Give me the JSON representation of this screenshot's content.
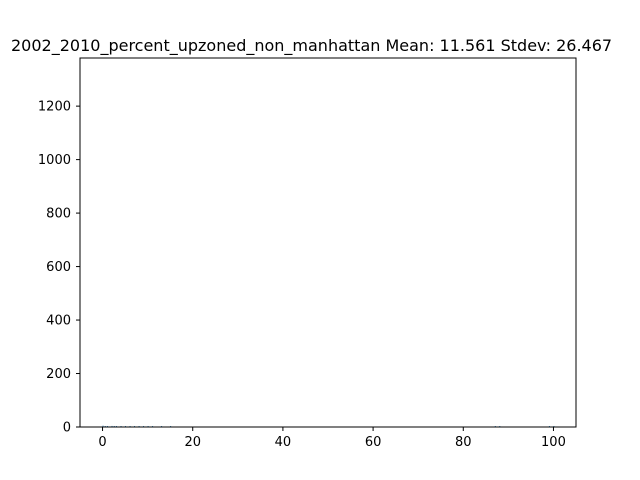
{
  "chart_data": {
    "type": "bar",
    "title": "2002_2010_percent_upzoned_non_manhattan  Mean: 11.561  Stdev: 26.467",
    "xlabel": "",
    "ylabel": "",
    "xlim": [
      -5,
      105
    ],
    "ylim": [
      0,
      1380
    ],
    "x_ticks": [
      0,
      20,
      40,
      60,
      80,
      100
    ],
    "y_ticks": [
      0,
      200,
      400,
      600,
      800,
      1000,
      1200
    ],
    "bar_color": "#1f77b4",
    "bins": [
      {
        "x": 0.0,
        "count": 5
      },
      {
        "x": 0.5,
        "count": 3
      },
      {
        "x": 1.0,
        "count": 2
      },
      {
        "x": 2.0,
        "count": 4
      },
      {
        "x": 2.5,
        "count": 2
      },
      {
        "x": 3.0,
        "count": 3
      },
      {
        "x": 4.0,
        "count": 2
      },
      {
        "x": 5.0,
        "count": 2
      },
      {
        "x": 6.0,
        "count": 2
      },
      {
        "x": 7.0,
        "count": 1
      },
      {
        "x": 8.0,
        "count": 2
      },
      {
        "x": 9.0,
        "count": 1
      },
      {
        "x": 10.0,
        "count": 2
      },
      {
        "x": 11.0,
        "count": 1
      },
      {
        "x": 13.0,
        "count": 1
      },
      {
        "x": 15.0,
        "count": 2
      },
      {
        "x": 87.0,
        "count": 1
      },
      {
        "x": 88.0,
        "count": 1
      },
      {
        "x": 99.0,
        "count": 1
      },
      {
        "x": 100.0,
        "count": 2
      }
    ]
  }
}
